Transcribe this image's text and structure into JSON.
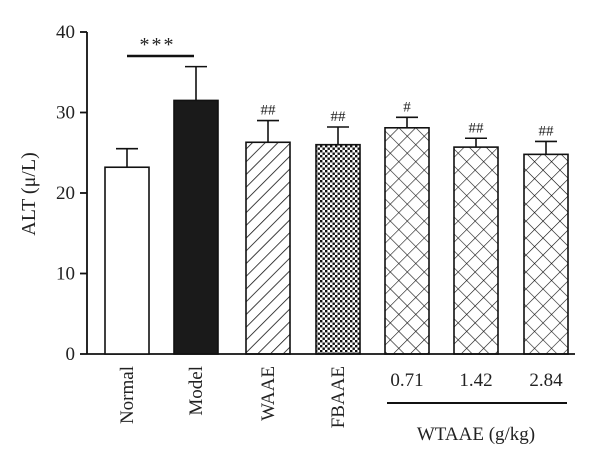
{
  "chart_data": {
    "type": "bar",
    "ylabel": "ALT (μ/L)",
    "ylim": [
      0,
      40
    ],
    "yticks": [
      0,
      10,
      20,
      30,
      40
    ],
    "categories": [
      "Normal",
      "Model",
      "WAAE",
      "FBAAE",
      "0.71",
      "1.42",
      "2.84"
    ],
    "values": [
      23.2,
      31.5,
      26.3,
      26.0,
      28.1,
      25.7,
      24.8
    ],
    "errors": [
      2.3,
      4.2,
      2.7,
      2.2,
      1.3,
      1.1,
      1.6
    ],
    "annotations": [
      "",
      "",
      "##",
      "##",
      "#",
      "##",
      "##"
    ],
    "fills": [
      "white",
      "black",
      "diagonal",
      "dots",
      "crosshatch",
      "crosshatch",
      "crosshatch"
    ],
    "significance": {
      "label": "***",
      "between": [
        "Normal",
        "Model"
      ]
    },
    "group_label": {
      "text": "WTAAE (g/kg)",
      "categories": [
        "0.71",
        "1.42",
        "2.84"
      ]
    }
  }
}
